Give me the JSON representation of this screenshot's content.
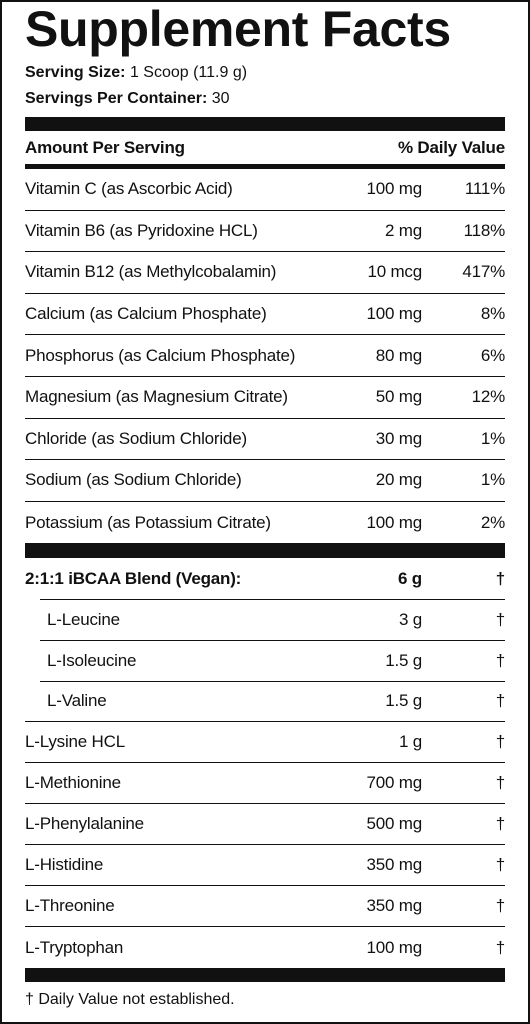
{
  "title": "Supplement Facts",
  "serving": {
    "size_label": "Serving Size:",
    "size": "1 Scoop (11.9 g)",
    "servings_label": "Servings Per Container:",
    "servings": "30"
  },
  "columns": {
    "amount": "Amount Per Serving",
    "dv": "% Daily Value"
  },
  "vitamins": [
    {
      "name": "Vitamin C (as Ascorbic Acid)",
      "amount": "100 mg",
      "dv": "111%"
    },
    {
      "name": "Vitamin B6 (as Pyridoxine HCL)",
      "amount": "2 mg",
      "dv": "118%"
    },
    {
      "name": "Vitamin B12 (as Methylcobalamin)",
      "amount": "10 mcg",
      "dv": "417%"
    },
    {
      "name": "Calcium (as Calcium Phosphate)",
      "amount": "100 mg",
      "dv": "8%"
    },
    {
      "name": "Phosphorus (as Calcium Phosphate)",
      "amount": "80 mg",
      "dv": "6%"
    },
    {
      "name": "Magnesium (as Magnesium Citrate)",
      "amount": "50 mg",
      "dv": "12%"
    },
    {
      "name": "Chloride (as Sodium Chloride)",
      "amount": "30 mg",
      "dv": "1%"
    },
    {
      "name": "Sodium (as Sodium Chloride)",
      "amount": "20 mg",
      "dv": "1%"
    },
    {
      "name": "Potassium (as Potassium Citrate)",
      "amount": "100 mg",
      "dv": "2%"
    }
  ],
  "blend": {
    "name": "2:1:1 iBCAA Blend (Vegan):",
    "amount": "6 g",
    "dv": "†",
    "components": [
      {
        "name": "L-Leucine",
        "amount": "3 g",
        "dv": "†"
      },
      {
        "name": "L-Isoleucine",
        "amount": "1.5 g",
        "dv": "†"
      },
      {
        "name": "L-Valine",
        "amount": "1.5 g",
        "dv": "†"
      }
    ]
  },
  "aminos": [
    {
      "name": "L-Lysine HCL",
      "amount": "1 g",
      "dv": "†"
    },
    {
      "name": "L-Methionine",
      "amount": "700 mg",
      "dv": "†"
    },
    {
      "name": "L-Phenylalanine",
      "amount": "500 mg",
      "dv": "†"
    },
    {
      "name": "L-Histidine",
      "amount": "350 mg",
      "dv": "†"
    },
    {
      "name": "L-Threonine",
      "amount": "350 mg",
      "dv": "†"
    },
    {
      "name": "L-Tryptophan",
      "amount": "100 mg",
      "dv": "†"
    }
  ],
  "footnote": "† Daily Value not established."
}
